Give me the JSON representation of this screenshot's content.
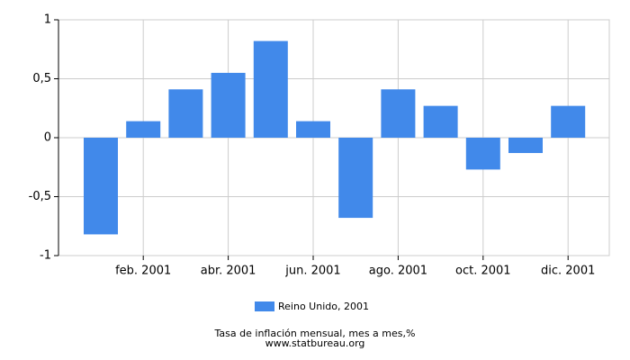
{
  "chart_data": {
    "type": "bar",
    "title": "Tasa de inflación mensual, mes a mes,%",
    "source": "www.statbureau.org",
    "categories": [
      null,
      "feb. 2001",
      null,
      "abr. 2001",
      null,
      "jun. 2001",
      null,
      "ago. 2001",
      null,
      "oct. 2001",
      null,
      "dic. 2001"
    ],
    "series": [
      {
        "name": "Reino Unido, 2001",
        "color": "#4189ea",
        "values": [
          -0.82,
          0.14,
          0.41,
          0.55,
          0.82,
          0.14,
          -0.68,
          0.41,
          0.27,
          -0.27,
          -0.13,
          0.27
        ]
      }
    ],
    "ylim": [
      -1,
      1
    ],
    "yticks": [
      -1,
      {
        "value": -0.5,
        "label": "-0,5"
      },
      0,
      {
        "value": 0.5,
        "label": "0,5"
      },
      1
    ],
    "grid": true
  }
}
